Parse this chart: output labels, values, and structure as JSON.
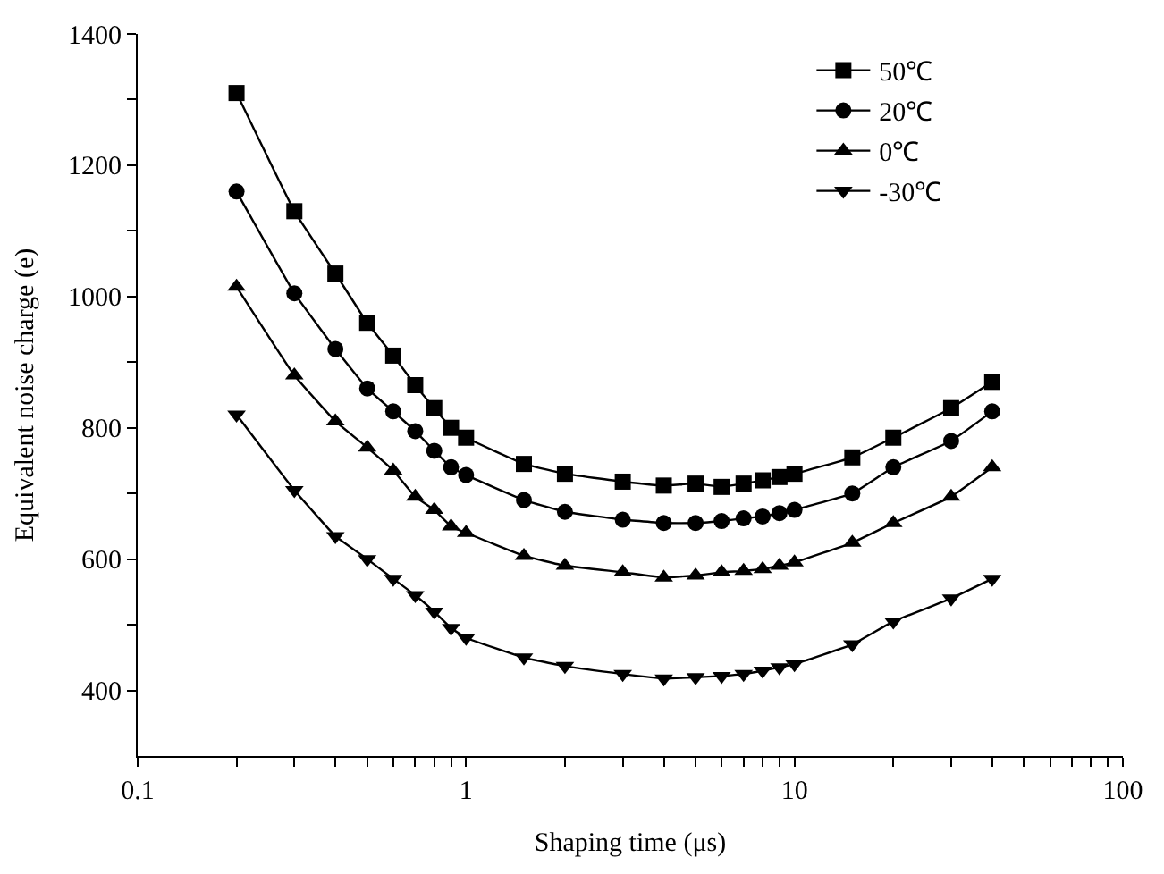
{
  "chart_data": {
    "type": "line",
    "xlabel": "Shaping time (μs)",
    "ylabel": "Equivalent noise charge (e)",
    "log": "x",
    "x": [
      0.2,
      0.3,
      0.4,
      0.5,
      0.6,
      0.7,
      0.8,
      0.9,
      1,
      1.5,
      2,
      3,
      4,
      5,
      6,
      7,
      8,
      9,
      10,
      15,
      20,
      30,
      40
    ],
    "series": [
      {
        "name": "50℃",
        "color": "#000000",
        "marker": "square",
        "values": [
          1310,
          1130,
          1035,
          960,
          910,
          865,
          830,
          800,
          785,
          745,
          730,
          718,
          712,
          715,
          710,
          715,
          720,
          725,
          730,
          755,
          785,
          830,
          870
        ]
      },
      {
        "name": "20℃",
        "color": "#000000",
        "marker": "circle",
        "values": [
          1160,
          1005,
          920,
          860,
          825,
          795,
          765,
          740,
          728,
          690,
          672,
          660,
          655,
          655,
          658,
          662,
          665,
          670,
          675,
          700,
          740,
          780,
          825
        ]
      },
      {
        "name": "0℃",
        "color": "#000000",
        "marker": "triangle",
        "values": [
          1015,
          880,
          810,
          770,
          735,
          695,
          675,
          650,
          640,
          605,
          590,
          580,
          572,
          575,
          580,
          582,
          585,
          590,
          595,
          625,
          655,
          695,
          740
        ]
      },
      {
        "name": "-30℃",
        "color": "#000000",
        "marker": "triangle-down",
        "values": [
          820,
          705,
          635,
          600,
          570,
          545,
          520,
          495,
          480,
          450,
          437,
          425,
          418,
          420,
          422,
          425,
          430,
          435,
          440,
          470,
          505,
          540,
          570
        ]
      }
    ],
    "xlim": [
      0.1,
      100
    ],
    "xticks": [
      0.1,
      {
        "value": 0.2,
        "label": null
      },
      {
        "value": 0.3,
        "label": null
      },
      {
        "value": 0.4,
        "label": null
      },
      {
        "value": 0.5,
        "label": null
      },
      {
        "value": 0.6,
        "label": null
      },
      {
        "value": 0.7,
        "label": null
      },
      {
        "value": 0.8,
        "label": null
      },
      {
        "value": 0.9,
        "label": null
      },
      1,
      {
        "value": 2,
        "label": null
      },
      {
        "value": 3,
        "label": null
      },
      {
        "value": 4,
        "label": null
      },
      {
        "value": 5,
        "label": null
      },
      {
        "value": 6,
        "label": null
      },
      {
        "value": 7,
        "label": null
      },
      {
        "value": 8,
        "label": null
      },
      {
        "value": 9,
        "label": null
      },
      10,
      {
        "value": 20,
        "label": null
      },
      {
        "value": 30,
        "label": null
      },
      {
        "value": 40,
        "label": null
      },
      {
        "value": 50,
        "label": null
      },
      {
        "value": 60,
        "label": null
      },
      {
        "value": 70,
        "label": null
      },
      {
        "value": 80,
        "label": null
      },
      {
        "value": 90,
        "label": null
      },
      100
    ],
    "ylim": [
      300,
      1400
    ],
    "yticks": [
      400,
      {
        "value": 500,
        "label": null
      },
      600,
      {
        "value": 700,
        "label": null
      },
      800,
      {
        "value": 900,
        "label": null
      },
      1000,
      {
        "value": 1100,
        "label": null
      },
      1200,
      {
        "value": 1300,
        "label": null
      },
      1400
    ],
    "legend": "top right",
    "line_style": "solid"
  }
}
